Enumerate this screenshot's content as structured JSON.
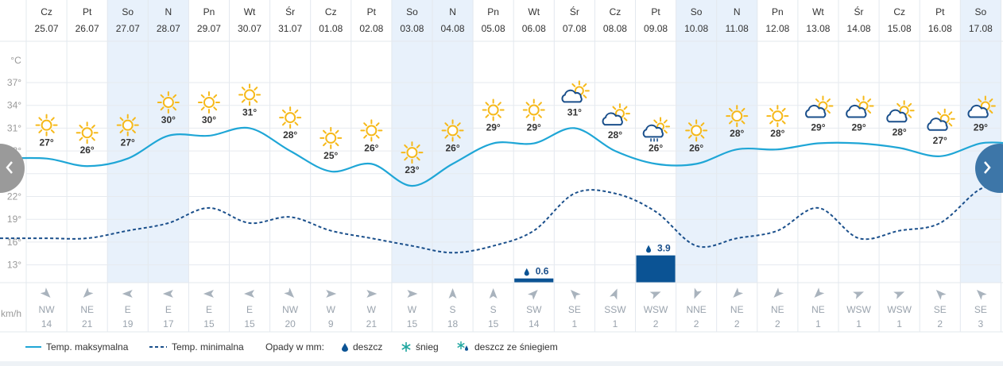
{
  "chart_data": {
    "type": "line",
    "y_axis": {
      "unit": "°C",
      "ticks": [
        "37°",
        "34°",
        "31°",
        "28°",
        "25°",
        "22°",
        "19°",
        "16°",
        "13°"
      ],
      "tick_values": [
        37,
        34,
        31,
        28,
        25,
        22,
        19,
        16,
        13
      ]
    },
    "wind_unit": "km/h",
    "days": [
      {
        "dow": "Cz",
        "date": "25.07",
        "weekend": false,
        "icon": "sun",
        "max": 27,
        "max_label": "27°",
        "min": 16.5,
        "wind_dir": "NW",
        "wind_speed": "14",
        "precip": null
      },
      {
        "dow": "Pt",
        "date": "26.07",
        "weekend": false,
        "icon": "sun",
        "max": 26,
        "max_label": "26°",
        "min": 16.5,
        "wind_dir": "NE",
        "wind_speed": "21",
        "precip": null
      },
      {
        "dow": "So",
        "date": "27.07",
        "weekend": true,
        "icon": "sun",
        "max": 27,
        "max_label": "27°",
        "min": 17.5,
        "wind_dir": "E",
        "wind_speed": "19",
        "precip": null
      },
      {
        "dow": "N",
        "date": "28.07",
        "weekend": true,
        "icon": "sun",
        "max": 30,
        "max_label": "30°",
        "min": 18.5,
        "wind_dir": "E",
        "wind_speed": "17",
        "precip": null
      },
      {
        "dow": "Pn",
        "date": "29.07",
        "weekend": false,
        "icon": "sun",
        "max": 30,
        "max_label": "30°",
        "min": 20.5,
        "wind_dir": "E",
        "wind_speed": "15",
        "precip": null
      },
      {
        "dow": "Wt",
        "date": "30.07",
        "weekend": false,
        "icon": "sun",
        "max": 31,
        "max_label": "31°",
        "min": 18.5,
        "wind_dir": "E",
        "wind_speed": "15",
        "precip": null
      },
      {
        "dow": "Śr",
        "date": "31.07",
        "weekend": false,
        "icon": "sun",
        "max": 28,
        "max_label": "28°",
        "min": 19.3,
        "wind_dir": "NW",
        "wind_speed": "20",
        "precip": null
      },
      {
        "dow": "Cz",
        "date": "01.08",
        "weekend": false,
        "icon": "sun",
        "max": 25.3,
        "max_label": "25°",
        "min": 17.5,
        "wind_dir": "W",
        "wind_speed": "9",
        "precip": null
      },
      {
        "dow": "Pt",
        "date": "02.08",
        "weekend": false,
        "icon": "sun",
        "max": 26.3,
        "max_label": "26°",
        "min": 16.5,
        "wind_dir": "W",
        "wind_speed": "21",
        "precip": null
      },
      {
        "dow": "So",
        "date": "03.08",
        "weekend": true,
        "icon": "sun",
        "max": 23.4,
        "max_label": "23°",
        "min": 15.5,
        "wind_dir": "W",
        "wind_speed": "15",
        "precip": null
      },
      {
        "dow": "N",
        "date": "04.08",
        "weekend": true,
        "icon": "sun",
        "max": 26.3,
        "max_label": "26°",
        "min": 14.6,
        "wind_dir": "S",
        "wind_speed": "18",
        "precip": null
      },
      {
        "dow": "Pn",
        "date": "05.08",
        "weekend": false,
        "icon": "sun",
        "max": 29,
        "max_label": "29°",
        "min": 15.5,
        "wind_dir": "S",
        "wind_speed": "15",
        "precip": null
      },
      {
        "dow": "Wt",
        "date": "06.08",
        "weekend": false,
        "icon": "sun",
        "max": 29,
        "max_label": "29°",
        "min": 17.5,
        "wind_dir": "SW",
        "wind_speed": "14",
        "precip": "0.6"
      },
      {
        "dow": "Śr",
        "date": "07.08",
        "weekend": false,
        "icon": "cloud-sun",
        "max": 31,
        "max_label": "31°",
        "min": 22.4,
        "wind_dir": "SE",
        "wind_speed": "1",
        "precip": null
      },
      {
        "dow": "Cz",
        "date": "08.08",
        "weekend": false,
        "icon": "cloud-sun",
        "max": 28,
        "max_label": "28°",
        "min": 22.4,
        "wind_dir": "SSW",
        "wind_speed": "1",
        "precip": null
      },
      {
        "dow": "Pt",
        "date": "09.08",
        "weekend": false,
        "icon": "rain-sun",
        "max": 26.3,
        "max_label": "26°",
        "min": 20.0,
        "wind_dir": "WSW",
        "wind_speed": "2",
        "precip": "3.9"
      },
      {
        "dow": "So",
        "date": "10.08",
        "weekend": true,
        "icon": "sun",
        "max": 26.3,
        "max_label": "26°",
        "min": 15.5,
        "wind_dir": "NNE",
        "wind_speed": "2",
        "precip": null
      },
      {
        "dow": "N",
        "date": "11.08",
        "weekend": true,
        "icon": "sun",
        "max": 28.2,
        "max_label": "28°",
        "min": 16.5,
        "wind_dir": "NE",
        "wind_speed": "2",
        "precip": null
      },
      {
        "dow": "Pn",
        "date": "12.08",
        "weekend": false,
        "icon": "sun",
        "max": 28.2,
        "max_label": "28°",
        "min": 17.5,
        "wind_dir": "NE",
        "wind_speed": "2",
        "precip": null
      },
      {
        "dow": "Wt",
        "date": "13.08",
        "weekend": false,
        "icon": "cloud-sun",
        "max": 29,
        "max_label": "29°",
        "min": 20.5,
        "wind_dir": "NE",
        "wind_speed": "1",
        "precip": null
      },
      {
        "dow": "Śr",
        "date": "14.08",
        "weekend": false,
        "icon": "cloud-sun",
        "max": 29,
        "max_label": "29°",
        "min": 16.5,
        "wind_dir": "WSW",
        "wind_speed": "1",
        "precip": null
      },
      {
        "dow": "Cz",
        "date": "15.08",
        "weekend": false,
        "icon": "cloud-sun",
        "max": 28.4,
        "max_label": "28°",
        "min": 17.5,
        "wind_dir": "WSW",
        "wind_speed": "1",
        "precip": null
      },
      {
        "dow": "Pt",
        "date": "16.08",
        "weekend": false,
        "icon": "cloud-sun",
        "max": 27.3,
        "max_label": "27°",
        "min": 18.5,
        "wind_dir": "SE",
        "wind_speed": "2",
        "precip": null
      },
      {
        "dow": "So",
        "date": "17.08",
        "weekend": true,
        "icon": "cloud-sun",
        "max": 29,
        "max_label": "29°",
        "min": 23.0,
        "wind_dir": "SE",
        "wind_speed": "3",
        "precip": null
      }
    ],
    "colors": {
      "max_line": "#1fa6d6",
      "min_line": "#1a4f8b",
      "weekend_bg": "#e8f1fb",
      "precip_bar": "#0b5394",
      "sun": "#f6b91a",
      "cloud": "#1a4f8b"
    }
  },
  "legend": {
    "max_label": "Temp. maksymalna",
    "min_label": "Temp. minimalna",
    "precip_title": "Opady w mm:",
    "rain_label": "deszcz",
    "snow_label": "śnieg",
    "sleet_label": "deszcz ze śniegiem"
  },
  "nav": {
    "prev_icon": "chevron-left-icon",
    "next_icon": "chevron-right-icon"
  }
}
